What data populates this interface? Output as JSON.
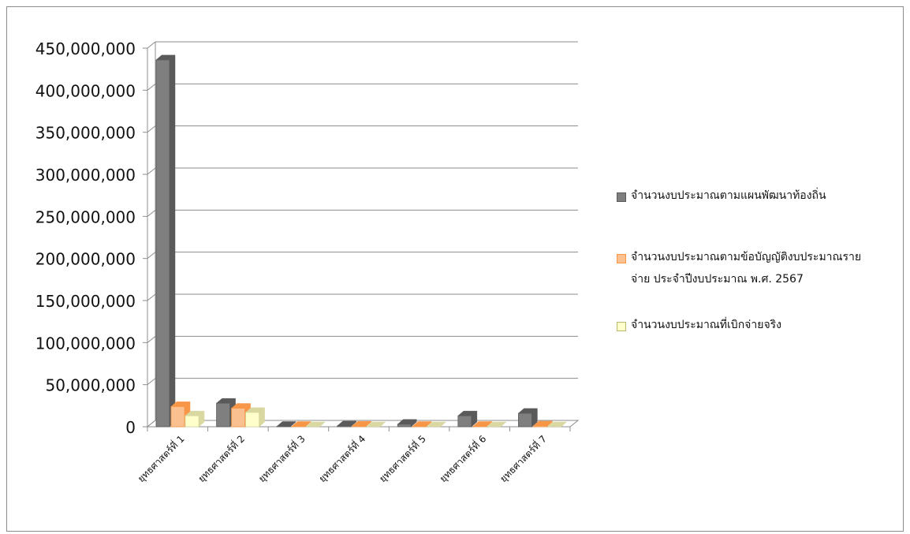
{
  "chart_data": {
    "type": "bar",
    "categories": [
      "ยุทธศาสตร์ที่ 1",
      "ยุทธศาสตร์ที่ 2",
      "ยุทธศาสตร์ที่ 3",
      "ยุทธศาสตร์ที่ 4",
      "ยุทธศาสตร์ที่ 5",
      "ยุทธศาสตร์ที่ 6",
      "ยุทธศาสตร์ที่ 7"
    ],
    "series": [
      {
        "name": "จำนวนงบประมาณตามแผนพัฒนาท้องถิ่น",
        "color": "#7f7f7f",
        "top_color": "#5a5a5a",
        "values": [
          436000000,
          28000000,
          500000,
          1000000,
          3000000,
          13000000,
          16000000
        ]
      },
      {
        "name": "จำนวนงบประมาณตามข้อบัญญัติงบประมาณรายจ่าย ประจำปีงบประมาณ พ.ศ. 2567",
        "color": "#fac090",
        "top_color": "#f79646",
        "values": [
          24000000,
          22000000,
          500000,
          800000,
          500000,
          500000,
          1000000
        ]
      },
      {
        "name": "จำนวนงบประมาณที่เบิกจ่ายจริง",
        "color": "#ffffcc",
        "top_color": "#d8d8a0",
        "values": [
          13000000,
          17000000,
          0,
          0,
          0,
          0,
          0
        ]
      }
    ],
    "yticks": [
      "0",
      "50,000,000",
      "100,000,000",
      "150,000,000",
      "200,000,000",
      "250,000,000",
      "300,000,000",
      "350,000,000",
      "400,000,000",
      "450,000,000"
    ],
    "ylim": [
      0,
      450000000
    ],
    "grid": true,
    "legend_position": "right"
  },
  "legend": {
    "item1": "จำนวนงบประมาณตามแผนพัฒนาท้องถิ่น",
    "item2": "จำนวนงบประมาณตามข้อบัญญัติงบประมาณรายจ่าย ประจำปีงบประมาณ พ.ศ. 2567",
    "item3": "จำนวนงบประมาณที่เบิกจ่ายจริง"
  }
}
